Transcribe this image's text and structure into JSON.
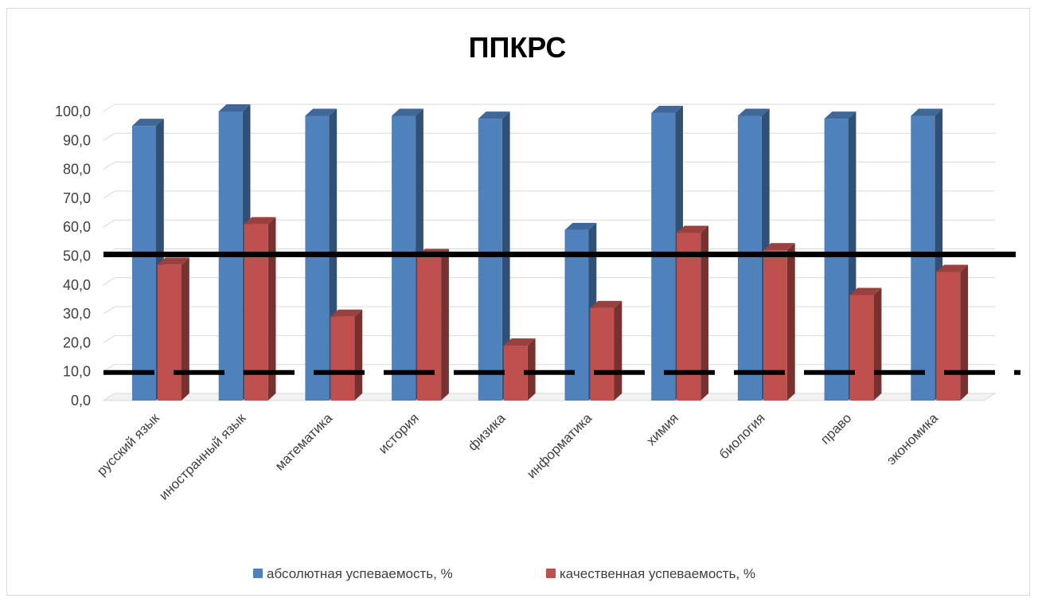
{
  "chart_data": {
    "type": "bar",
    "title": "ППКРС",
    "categories": [
      "русский язык",
      "иностранный язык",
      "математика",
      "история",
      "физика",
      "информатика",
      "химия",
      "биология",
      "право",
      "экономика"
    ],
    "series": [
      {
        "name": "абсолютная успеваемость, %",
        "values": [
          95.0,
          100.0,
          98.5,
          98.5,
          97.5,
          59.0,
          99.5,
          98.5,
          97.5,
          98.5
        ],
        "color": "#4f81bd"
      },
      {
        "name": "качественная успеваемость, %",
        "values": [
          47.0,
          61.0,
          29.0,
          50.0,
          19.0,
          32.0,
          58.0,
          52.0,
          36.5,
          44.5
        ],
        "color": "#c0504d"
      }
    ],
    "yticks": [
      "0,0",
      "10,0",
      "20,0",
      "30,0",
      "40,0",
      "50,0",
      "60,0",
      "70,0",
      "80,0",
      "90,0",
      "100,0"
    ],
    "ylim": [
      0,
      100
    ],
    "grid": true,
    "legend_position": "bottom",
    "reference_lines": [
      {
        "value": 50,
        "style": "solid"
      },
      {
        "value": 10,
        "style": "dashed"
      }
    ]
  }
}
